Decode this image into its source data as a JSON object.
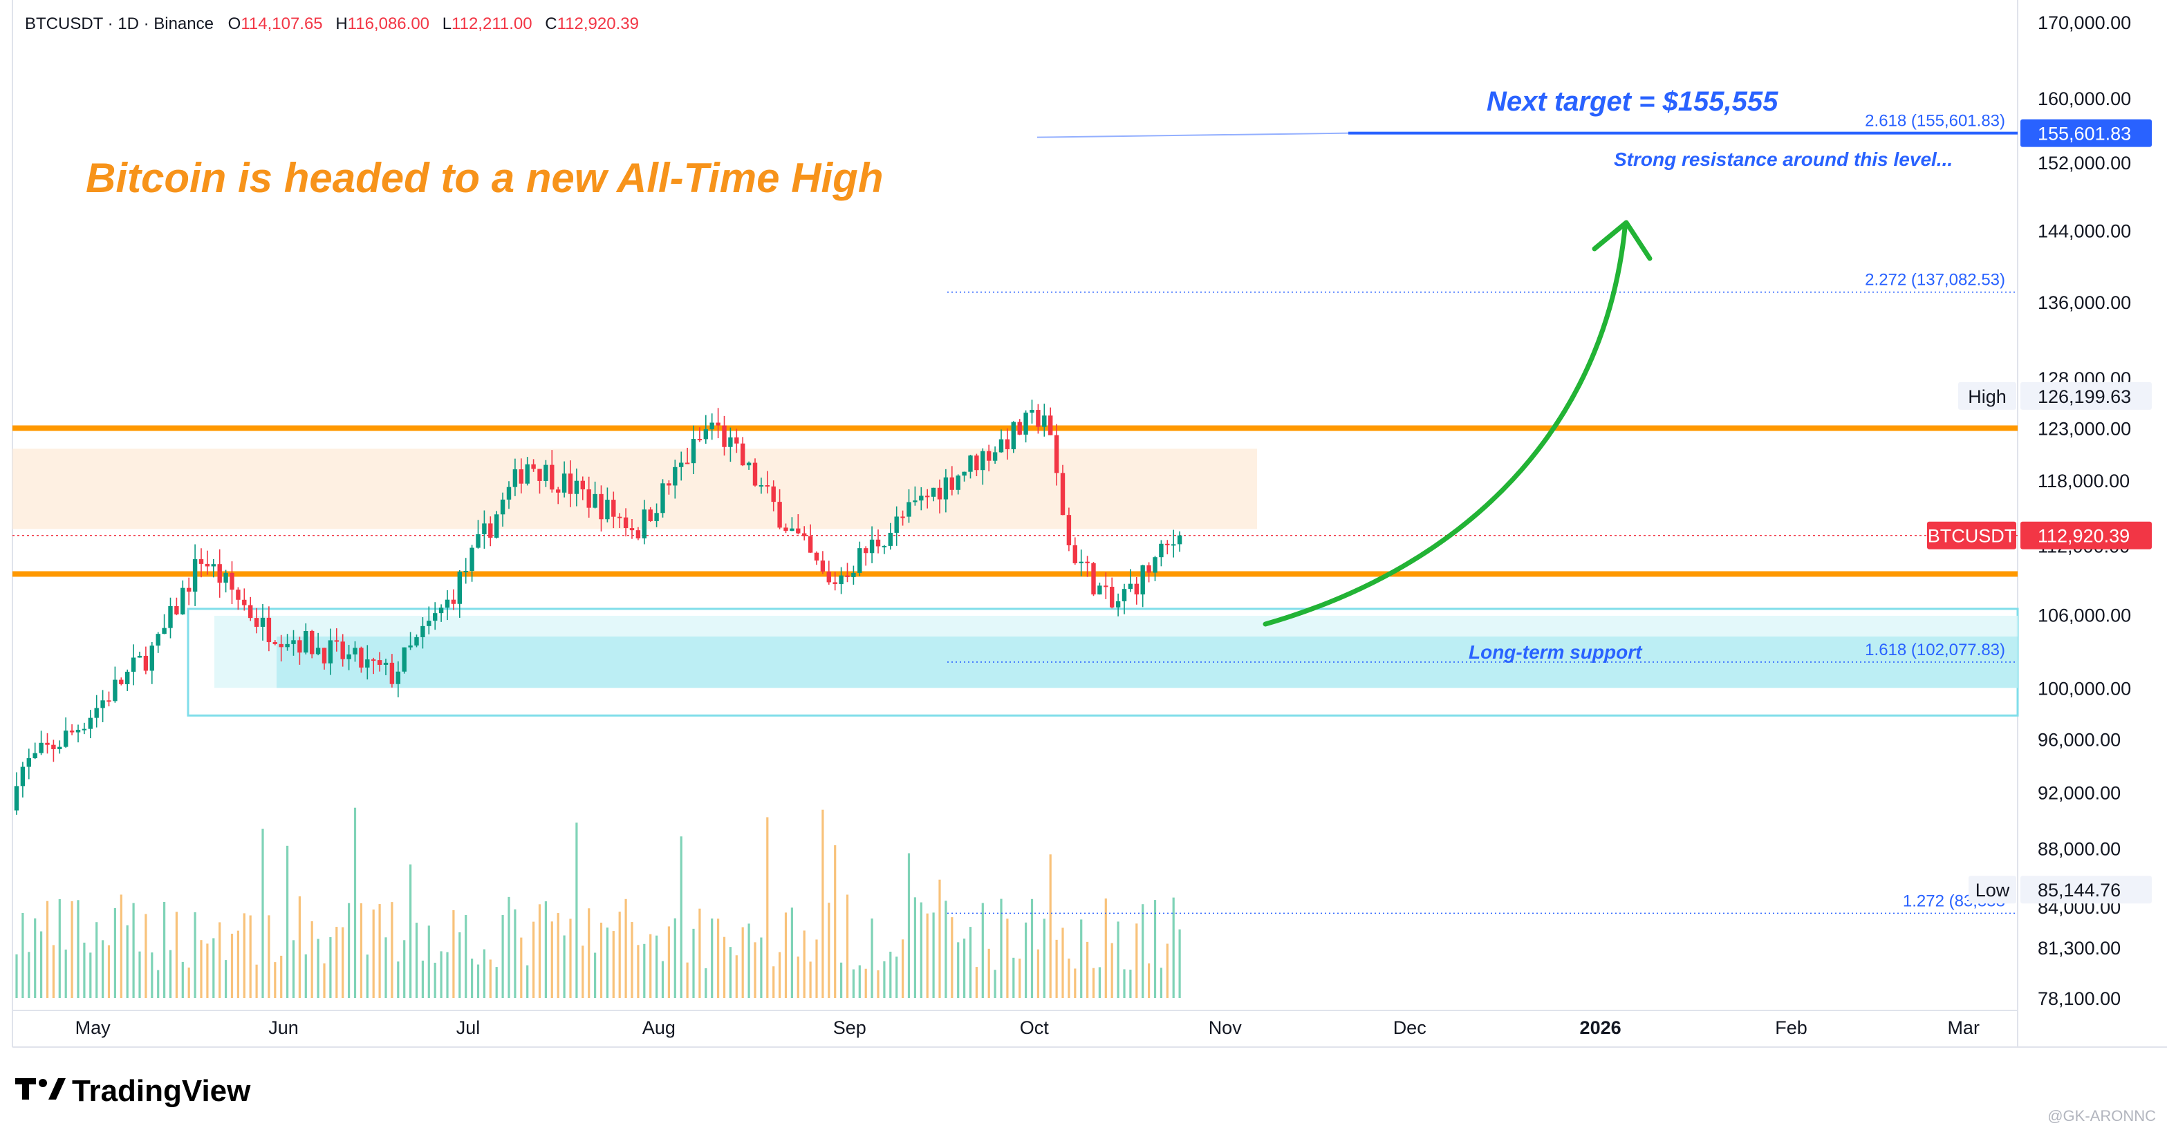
{
  "header": {
    "symbol": "BTCUSDT · 1D · Binance",
    "o_label": "O",
    "o_value": "114,107.65",
    "h_label": "H",
    "h_value": "116,086.00",
    "l_label": "L",
    "l_value": "112,211.00",
    "c_label": "C",
    "c_value": "112,920.39"
  },
  "annotations": {
    "headline": "Bitcoin is headed to a new All-Time High",
    "target": "Next target = $155,555",
    "resistance_note": "Strong resistance around this level...",
    "support_note": "Long-term support"
  },
  "fib_levels": [
    {
      "label": "2.618 (155,601.83)",
      "price": 155601.83
    },
    {
      "label": "2.272 (137,082.53)",
      "price": 137082.53
    },
    {
      "label": "1.618 (102,077.83)",
      "price": 102077.83
    },
    {
      "label": "1.272 (83,558",
      "price": 83558
    }
  ],
  "price_axis": {
    "ticks": [
      {
        "label": "170,000.00",
        "price": 170000
      },
      {
        "label": "160,000.00",
        "price": 160000
      },
      {
        "label": "152,000.00",
        "price": 152000
      },
      {
        "label": "144,000.00",
        "price": 144000
      },
      {
        "label": "136,000.00",
        "price": 136000
      },
      {
        "label": "128,000.00",
        "price": 128000
      },
      {
        "label": "123,000.00",
        "price": 123000
      },
      {
        "label": "118,000.00",
        "price": 118000
      },
      {
        "label": "112,000.00",
        "price": 112000
      },
      {
        "label": "106,000.00",
        "price": 106000
      },
      {
        "label": "100,000.00",
        "price": 100000
      },
      {
        "label": "96,000.00",
        "price": 96000
      },
      {
        "label": "92,000.00",
        "price": 92000
      },
      {
        "label": "88,000.00",
        "price": 88000
      },
      {
        "label": "84,000.00",
        "price": 84000
      },
      {
        "label": "81,300.00",
        "price": 81300
      },
      {
        "label": "78,100.00",
        "price": 78100
      }
    ],
    "badges": [
      {
        "label": "155,601.83",
        "price": 155601.83,
        "bg": "#2962ff",
        "fg": "#ffffff"
      },
      {
        "label": "BTCUSDT",
        "value": "112,920.39",
        "price": 112920.39,
        "bg": "#f23645",
        "fg": "#ffffff"
      },
      {
        "label": "High",
        "value": "126,199.63",
        "price": 126199.63,
        "bg": "#f0f3fa",
        "fg": "#131722"
      },
      {
        "label": "Low",
        "value": "85,144.76",
        "price": 85144.76,
        "bg": "#f0f3fa",
        "fg": "#131722"
      }
    ]
  },
  "time_axis": {
    "labels": [
      "May",
      "Jun",
      "Jul",
      "Aug",
      "Sep",
      "Oct",
      "Nov",
      "Dec",
      "2026",
      "Feb",
      "Mar"
    ]
  },
  "zones": {
    "resistance_top": 123000,
    "resistance_zone": [
      113500,
      121000
    ],
    "support_top": 109500,
    "support_zone": [
      100000,
      106500
    ]
  },
  "colors": {
    "up": "#089981",
    "down": "#f23645",
    "orange": "#ff9800",
    "blue": "#2962ff",
    "arrow": "#22b335",
    "support": "#80deea"
  },
  "branding": {
    "logo": "TradingView",
    "watermark": "@GK-ARONNC"
  },
  "chart_data": {
    "type": "candlestick",
    "symbol": "BTCUSDT",
    "interval": "1D",
    "exchange": "Binance",
    "title": "",
    "x_range": [
      "2025-04-22",
      "2026-03-20"
    ],
    "ylim": [
      78100,
      170000
    ],
    "scale": "log",
    "grid": false,
    "last": {
      "open": 114107.65,
      "high": 116086.0,
      "low": 112211.0,
      "close": 112920.39
    },
    "high_marker": 126199.63,
    "low_marker": 85144.76,
    "monthly_closes": [
      {
        "x": "2025-04-22",
        "close": 93500
      },
      {
        "x": "2025-05-01",
        "close": 96500
      },
      {
        "x": "2025-05-15",
        "close": 103500
      },
      {
        "x": "2025-05-22",
        "close": 111000
      },
      {
        "x": "2025-06-01",
        "close": 105000
      },
      {
        "x": "2025-06-22",
        "close": 101000
      },
      {
        "x": "2025-07-01",
        "close": 107000
      },
      {
        "x": "2025-07-14",
        "close": 119800
      },
      {
        "x": "2025-08-01",
        "close": 113500
      },
      {
        "x": "2025-08-13",
        "close": 123500
      },
      {
        "x": "2025-09-01",
        "close": 108500
      },
      {
        "x": "2025-09-18",
        "close": 117000
      },
      {
        "x": "2025-10-06",
        "close": 124500
      },
      {
        "x": "2025-10-10",
        "close": 112000
      },
      {
        "x": "2025-10-17",
        "close": 106500
      },
      {
        "x": "2025-10-28",
        "close": 112920.39
      }
    ]
  }
}
